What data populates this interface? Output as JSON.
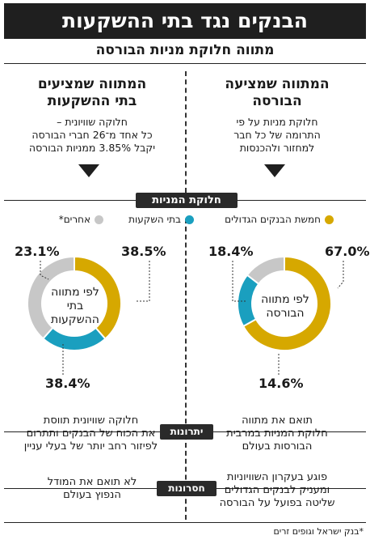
{
  "title": "הבנקים נגד בתי ההשקעות",
  "subtitle": "מתווה חלוקת מניות הבורסה",
  "right_column": {
    "heading_line1": "המתווה שמציעה",
    "heading_line2": "הבורסה",
    "desc_line1": "חלוקת מניות על פי",
    "desc_line2": "התרומה של כל חבר",
    "desc_line3": "למחזור ולהכנסות"
  },
  "left_column": {
    "heading_line1": "המתווה שמציעים",
    "heading_line2": "בתי ההשקעות",
    "desc_line1": "חלוקה שוויונית –",
    "desc_line2": "כל אחד מ־26 חברי הבורסה",
    "desc_line3": "יקבל 3.85% ממניות הבורסה"
  },
  "section_tag": "חלוקת המניות",
  "colors": {
    "banks": "#d6a800",
    "investment_houses": "#1a9fbf",
    "others": "#c7c7c7",
    "dark": "#1f1f1f"
  },
  "chart_data": [
    {
      "type": "pie",
      "center_label": [
        "לפי מתווה",
        "הבורסה"
      ],
      "legend": [
        "חמשת הבנקים הגדולים"
      ],
      "labels": [
        "חמשת הבנקים הגדולים",
        "בתי השקעות",
        "אחרים*"
      ],
      "values": [
        67.0,
        18.4,
        14.6
      ],
      "value_labels": [
        "67.0%",
        "18.4%",
        "14.6%"
      ]
    },
    {
      "type": "pie",
      "center_label": [
        "לפי מתווה",
        "בתי",
        "ההשקעות"
      ],
      "legend": [
        "בתי השקעות",
        "אחרים*"
      ],
      "labels": [
        "חמשת הבנקים הגדולים",
        "בתי השקעות",
        "אחרים*"
      ],
      "values": [
        38.5,
        23.1,
        38.4
      ],
      "value_labels": [
        "38.5%",
        "23.1%",
        "38.4%"
      ]
    }
  ],
  "advantages": {
    "tag": "יתרונות",
    "right_line1": "תואם את מתווה",
    "right_line2": "חלוקת המניות במרבית",
    "right_line3": "הבורסות בעולם",
    "left_line1": "חלוקה שוויונית תווסת",
    "left_line2": "את הכוח של הבנקים ותתרום",
    "left_line3": "לפיזור רחב יותר של בעלי עניין"
  },
  "disadvantages": {
    "tag": "חסרונות",
    "right_line1": "פוגע בעקרון השוויוניות",
    "right_line2": "ומעניק לבנקים הגדולים",
    "right_line3": "שליטה בפועל על הבורסה",
    "left_line1": "לא תואם את המודל",
    "left_line2": "הנפוץ בעולם"
  },
  "footnote": "*בנק ישראל וגופים זרים"
}
